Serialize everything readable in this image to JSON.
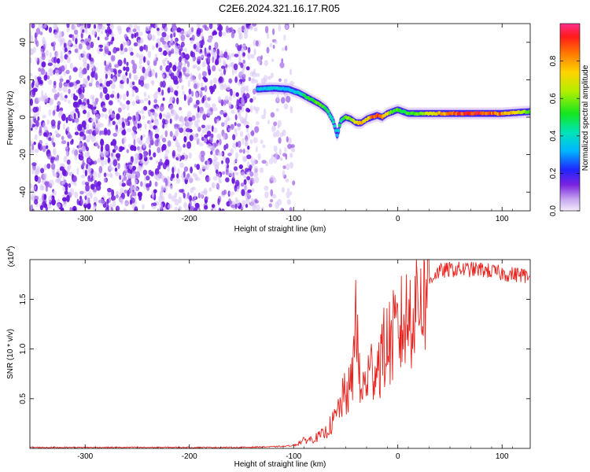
{
  "title": "C2E6.2024.321.16.17.R05",
  "chart_data": [
    {
      "type": "heatmap",
      "xlabel": "Height of straight line (km)",
      "ylabel": "Frequency (Hz)",
      "xlim": [
        -353,
        127
      ],
      "ylim": [
        -50,
        50
      ],
      "xticks": [
        -300,
        -200,
        -100,
        0,
        100
      ],
      "yticks": [
        -40,
        -20,
        0,
        20,
        40
      ],
      "colorbar": {
        "label": "Normalized spectral amplitude",
        "range": [
          0,
          1
        ],
        "ticks": [
          0.0,
          0.2,
          0.4,
          0.6,
          0.8
        ]
      },
      "noise_region_x": [
        -353,
        -100
      ],
      "ridge": {
        "x": [
          -135,
          -120,
          -105,
          -95,
          -85,
          -75,
          -68,
          -62,
          -58,
          -55,
          -50,
          -45,
          -40,
          -35,
          -30,
          -25,
          -20,
          -15,
          -10,
          -5,
          0,
          5,
          10,
          20,
          40,
          60,
          80,
          100,
          127
        ],
        "freq": [
          15,
          15.5,
          15,
          13,
          10,
          7,
          4,
          -2,
          -10,
          -2,
          0,
          -1,
          -3,
          -3,
          -1,
          0,
          1,
          0,
          2,
          3,
          4,
          3,
          2,
          2,
          2,
          2,
          2,
          2,
          3
        ],
        "amplitude": [
          0.35,
          0.4,
          0.35,
          0.4,
          0.55,
          0.6,
          0.5,
          0.45,
          0.35,
          0.5,
          0.6,
          0.65,
          0.7,
          0.8,
          0.75,
          0.85,
          0.9,
          0.85,
          0.75,
          0.55,
          0.6,
          0.5,
          0.55,
          0.6,
          0.8,
          0.95,
          0.95,
          0.85,
          0.6
        ]
      }
    },
    {
      "type": "line",
      "xlabel": "Height of straight line (km)",
      "ylabel": "SNR (10 * v/v)",
      "yscale_label": "(x10",
      "yscale_exp": "4",
      "yscale_close": ")",
      "xlim": [
        -353,
        127
      ],
      "ylim": [
        0,
        1.9
      ],
      "xticks": [
        -300,
        -200,
        -100,
        0,
        100
      ],
      "yticks": [
        0.5,
        1.0,
        1.5
      ],
      "ytick_labels": [
        "0.5",
        "1.0",
        "1.5"
      ],
      "series": [
        {
          "color": "#e8231e",
          "x": [
            -353,
            -300,
            -250,
            -200,
            -150,
            -110,
            -100,
            -90,
            -80,
            -70,
            -60,
            -55,
            -50,
            -45,
            -42,
            -40,
            -38,
            -35,
            -30,
            -25,
            -20,
            -15,
            -10,
            -5,
            0,
            5,
            10,
            15,
            20,
            25,
            30,
            35,
            40,
            50,
            60,
            70,
            80,
            90,
            100,
            110,
            120,
            127
          ],
          "y": [
            0.01,
            0.01,
            0.01,
            0.01,
            0.01,
            0.02,
            0.03,
            0.08,
            0.1,
            0.15,
            0.3,
            0.45,
            0.55,
            0.6,
            0.9,
            1.75,
            0.75,
            0.55,
            0.7,
            0.8,
            0.85,
            0.95,
            1.05,
            1.1,
            1.15,
            1.25,
            1.3,
            1.45,
            1.55,
            1.6,
            1.68,
            1.75,
            1.78,
            1.8,
            1.8,
            1.8,
            1.8,
            1.78,
            1.76,
            1.75,
            1.75,
            1.7
          ]
        }
      ]
    }
  ]
}
